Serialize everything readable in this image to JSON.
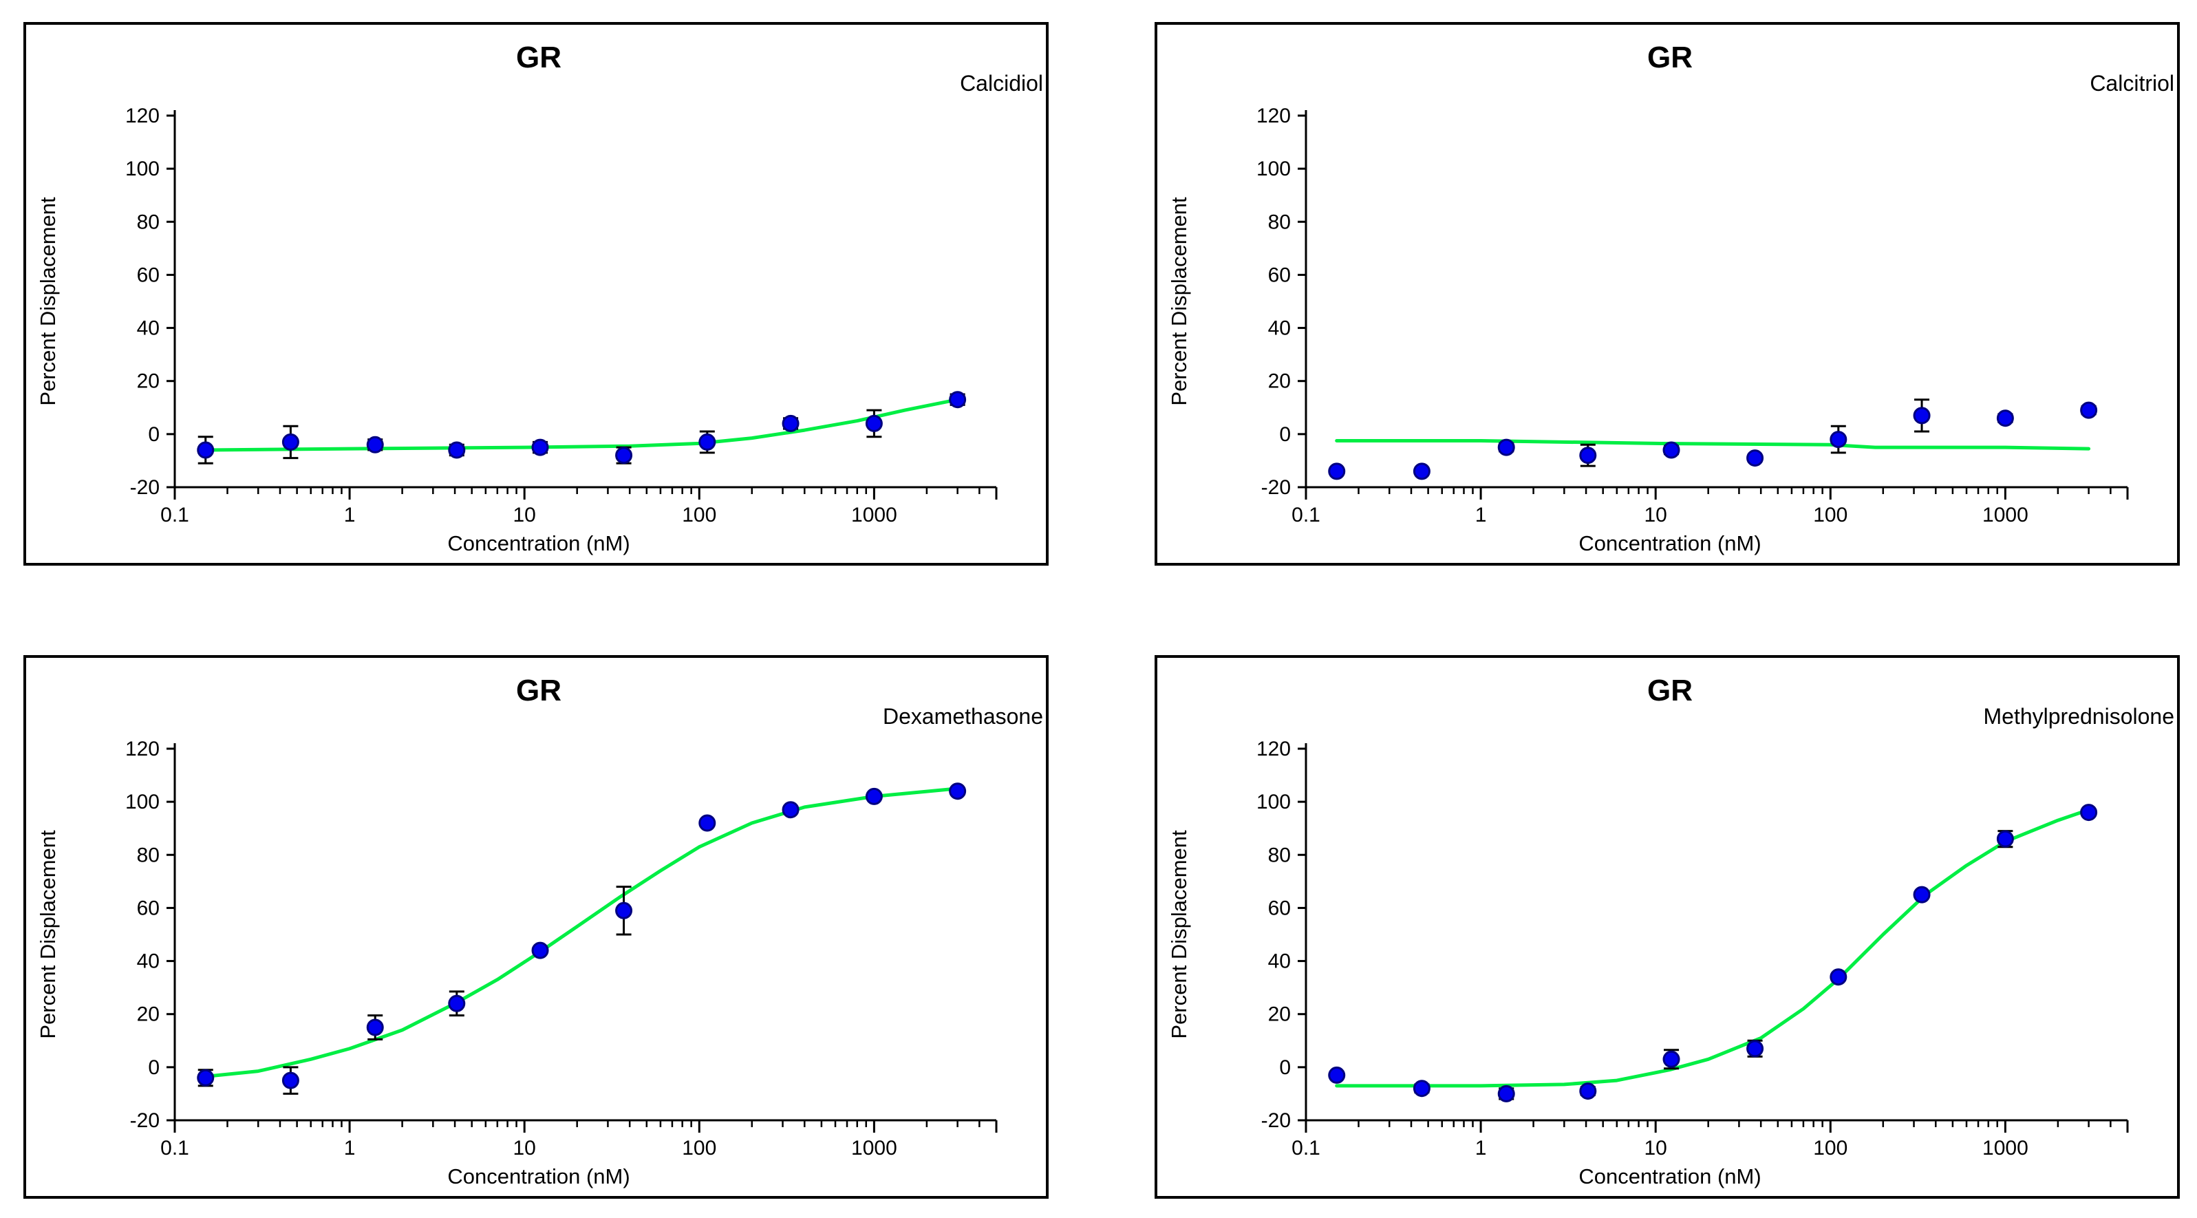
{
  "chart_data": [
    {
      "type": "scatter",
      "title": "GR",
      "compound": "Calcidiol",
      "xlabel": "Concentration  (nM)",
      "ylabel": "Percent  Displacement",
      "xscale": "log",
      "xlim": [
        0.1,
        5000
      ],
      "ylim": [
        -20,
        120
      ],
      "xticks": [
        "0.1",
        "1",
        "10",
        "100",
        "1000"
      ],
      "yticks": [
        "120",
        "100",
        "80",
        "60",
        "40",
        "20",
        "0",
        "-20"
      ],
      "colors": {
        "point": "#0000ee",
        "point_edge": "#000080",
        "fit": "#00ee44",
        "error": "#000000"
      },
      "points": [
        {
          "x": 0.15,
          "y": -6,
          "err": 5
        },
        {
          "x": 0.46,
          "y": -3,
          "err": 6
        },
        {
          "x": 1.4,
          "y": -4,
          "err": 2
        },
        {
          "x": 4.1,
          "y": -6,
          "err": 2
        },
        {
          "x": 12.3,
          "y": -5,
          "err": 2
        },
        {
          "x": 37,
          "y": -8,
          "err": 3
        },
        {
          "x": 111,
          "y": -3,
          "err": 4
        },
        {
          "x": 333,
          "y": 4,
          "err": 2
        },
        {
          "x": 1000,
          "y": 4,
          "err": 5
        },
        {
          "x": 3000,
          "y": 13,
          "err": 2
        }
      ],
      "fit": {
        "x": [
          0.15,
          1,
          10,
          40,
          100,
          200,
          400,
          800,
          1500,
          3000
        ],
        "y": [
          -6,
          -5.5,
          -5,
          -4.5,
          -3.5,
          -1.5,
          1.5,
          5,
          9,
          13
        ]
      }
    },
    {
      "type": "scatter",
      "title": "GR",
      "compound": "Calcitriol",
      "xlabel": "Concentration  (nM)",
      "ylabel": "Percent  Displacement",
      "xscale": "log",
      "xlim": [
        0.1,
        5000
      ],
      "ylim": [
        -20,
        120
      ],
      "xticks": [
        "0.1",
        "1",
        "10",
        "100",
        "1000"
      ],
      "yticks": [
        "120",
        "100",
        "80",
        "60",
        "40",
        "20",
        "0",
        "-20"
      ],
      "colors": {
        "point": "#0000ee",
        "point_edge": "#000080",
        "fit": "#00ee44",
        "error": "#000000"
      },
      "points": [
        {
          "x": 0.15,
          "y": -14,
          "err": 1
        },
        {
          "x": 0.46,
          "y": -14,
          "err": 1
        },
        {
          "x": 1.4,
          "y": -5,
          "err": 1.5
        },
        {
          "x": 4.1,
          "y": -8,
          "err": 4
        },
        {
          "x": 12.3,
          "y": -6,
          "err": 1.5
        },
        {
          "x": 37,
          "y": -9,
          "err": 1
        },
        {
          "x": 111,
          "y": -2,
          "err": 5
        },
        {
          "x": 333,
          "y": 7,
          "err": 6
        },
        {
          "x": 1000,
          "y": 6,
          "err": 1.5
        },
        {
          "x": 3000,
          "y": 9,
          "err": 1.5
        }
      ],
      "fit": {
        "x": [
          0.15,
          1,
          10,
          100,
          180,
          300,
          1000,
          3000
        ],
        "y": [
          -2.5,
          -2.5,
          -3.5,
          -4,
          -5,
          -5,
          -5,
          -5.5
        ]
      }
    },
    {
      "type": "scatter",
      "title": "GR",
      "compound": "Dexamethasone",
      "xlabel": "Concentration  (nM)",
      "ylabel": "Percent  Displacement",
      "xscale": "log",
      "xlim": [
        0.1,
        5000
      ],
      "ylim": [
        -20,
        120
      ],
      "xticks": [
        "0.1",
        "1",
        "10",
        "100",
        "1000"
      ],
      "yticks": [
        "120",
        "100",
        "80",
        "60",
        "40",
        "20",
        "0",
        "-20"
      ],
      "colors": {
        "point": "#0000ee",
        "point_edge": "#000080",
        "fit": "#00ee44",
        "error": "#000000"
      },
      "points": [
        {
          "x": 0.15,
          "y": -4,
          "err": 3
        },
        {
          "x": 0.46,
          "y": -5,
          "err": 5
        },
        {
          "x": 1.4,
          "y": 15,
          "err": 4.5
        },
        {
          "x": 4.1,
          "y": 24,
          "err": 4.5
        },
        {
          "x": 12.3,
          "y": 44,
          "err": 1
        },
        {
          "x": 37,
          "y": 59,
          "err": 9
        },
        {
          "x": 111,
          "y": 92,
          "err": 1
        },
        {
          "x": 333,
          "y": 97,
          "err": 1
        },
        {
          "x": 1000,
          "y": 102,
          "err": 1
        },
        {
          "x": 3000,
          "y": 104,
          "err": 1
        }
      ],
      "fit": {
        "x": [
          0.15,
          0.3,
          0.6,
          1,
          2,
          4,
          7,
          12,
          20,
          35,
          60,
          100,
          200,
          400,
          1000,
          3000
        ],
        "y": [
          -3.5,
          -1.5,
          3,
          7,
          14,
          24,
          33,
          43,
          53,
          64,
          74,
          83,
          92,
          98,
          102,
          105
        ]
      }
    },
    {
      "type": "scatter",
      "title": "GR",
      "compound": "Methylprednisolone",
      "xlabel": "Concentration  (nM)",
      "ylabel": "Percent  Displacement",
      "xscale": "log",
      "xlim": [
        0.1,
        5000
      ],
      "ylim": [
        -20,
        120
      ],
      "xticks": [
        "0.1",
        "1",
        "10",
        "100",
        "1000"
      ],
      "yticks": [
        "120",
        "100",
        "80",
        "60",
        "40",
        "20",
        "0",
        "-20"
      ],
      "colors": {
        "point": "#0000ee",
        "point_edge": "#000080",
        "fit": "#00ee44",
        "error": "#000000"
      },
      "points": [
        {
          "x": 0.15,
          "y": -3,
          "err": 1
        },
        {
          "x": 0.46,
          "y": -8,
          "err": 1.5
        },
        {
          "x": 1.4,
          "y": -10,
          "err": 2
        },
        {
          "x": 4.1,
          "y": -9,
          "err": 1.5
        },
        {
          "x": 12.3,
          "y": 3,
          "err": 3.5
        },
        {
          "x": 37,
          "y": 7,
          "err": 3
        },
        {
          "x": 111,
          "y": 34,
          "err": 1
        },
        {
          "x": 333,
          "y": 65,
          "err": 1
        },
        {
          "x": 1000,
          "y": 86,
          "err": 3
        },
        {
          "x": 3000,
          "y": 96,
          "err": 1
        }
      ],
      "fit": {
        "x": [
          0.15,
          1,
          3,
          6,
          12,
          20,
          40,
          70,
          110,
          200,
          350,
          600,
          1000,
          2000,
          3000
        ],
        "y": [
          -7,
          -7,
          -6.5,
          -5,
          -1,
          3,
          11,
          22,
          33,
          50,
          65,
          76,
          85,
          93,
          97
        ]
      }
    }
  ]
}
